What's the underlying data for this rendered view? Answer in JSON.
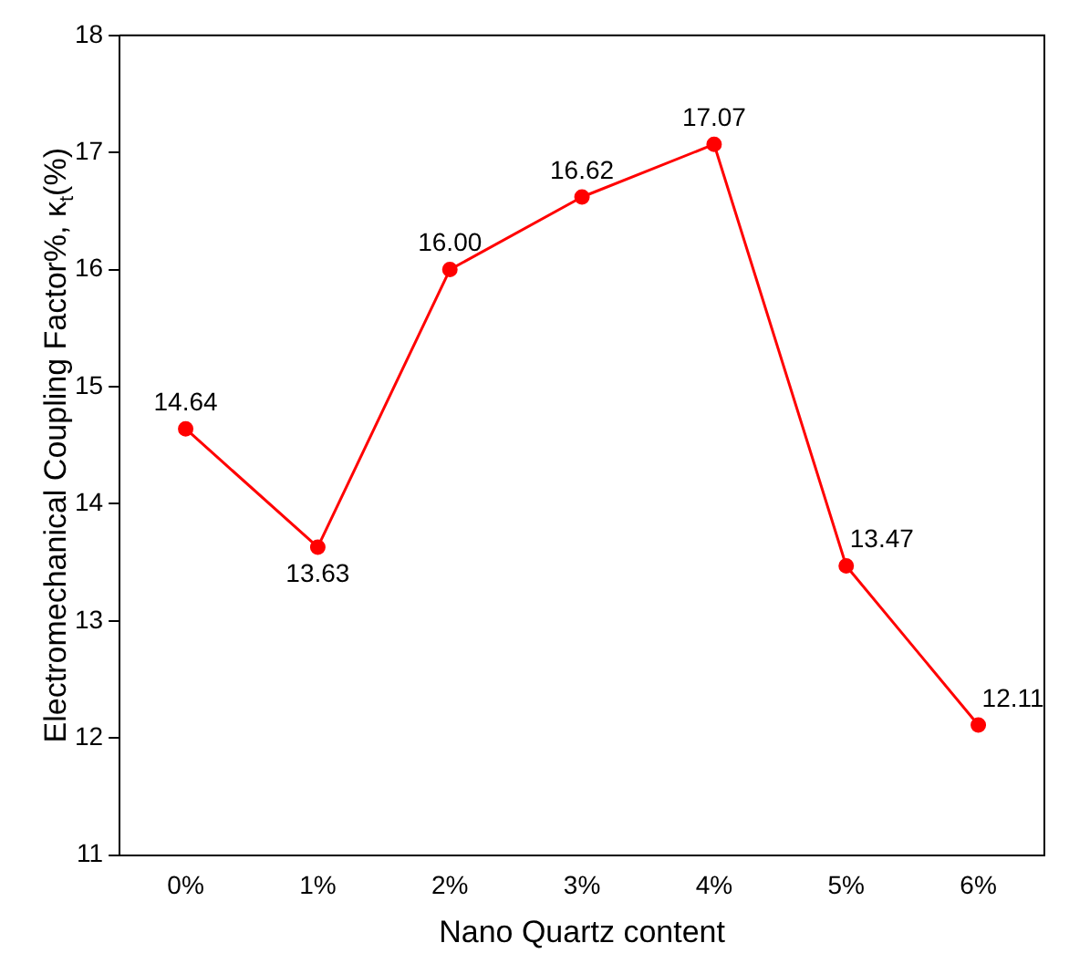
{
  "chart_data": {
    "type": "line",
    "xlabel": "Nano Quartz content",
    "ylabel": "Electromechanical Coupling Factor%, κ$_{t}$(%)",
    "categories": [
      "0%",
      "1%",
      "2%",
      "3%",
      "4%",
      "5%",
      "6%"
    ],
    "series": [
      {
        "color": "#ff0000",
        "values": [
          14.64,
          13.63,
          16.0,
          16.62,
          17.07,
          13.47,
          12.11
        ]
      }
    ],
    "value_labels": [
      "14.64",
      "13.63",
      "16.00",
      "16.62",
      "17.07",
      "13.47",
      "12.11"
    ],
    "ylim": [
      11,
      18
    ],
    "yticks": [
      11,
      12,
      13,
      14,
      15,
      16,
      17,
      18
    ],
    "grid": false,
    "legend": false,
    "marker": "circle",
    "line_style": "solid"
  }
}
